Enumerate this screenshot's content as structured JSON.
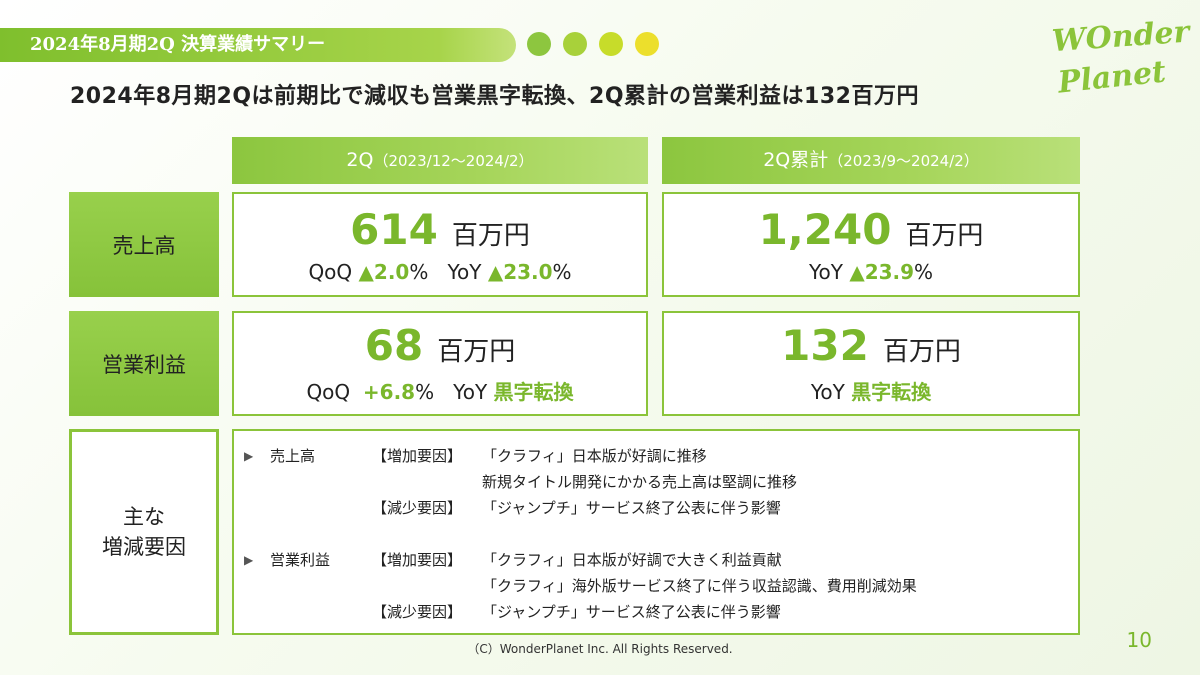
{
  "header": {
    "tab_title": "2024年8月期2Q 決算業績サマリー",
    "dot_colors": [
      "#8dc63f",
      "#a8d13a",
      "#c7dc2a",
      "#ecdf2c"
    ],
    "logo_top": "WOnder",
    "logo_bottom": "Planet"
  },
  "headline": "2024年8月期2Qは前期比で減収も営業黒字転換、2Q累計の営業利益は132百万円",
  "columns": [
    {
      "label": "2Q",
      "period": "（2023/12～2024/2）"
    },
    {
      "label": "2Q累計",
      "period": "（2023/9～2024/2）"
    }
  ],
  "rows": {
    "sales": {
      "label": "売上高",
      "q2": {
        "value": "614",
        "unit": "百万円",
        "qoq_label": "QoQ",
        "qoq": "▲2.0",
        "yoy_label": "YoY",
        "yoy": "▲23.0",
        "pct": "%"
      },
      "cum": {
        "value": "1,240",
        "unit": "百万円",
        "yoy_label": "YoY",
        "yoy": "▲23.9",
        "pct": "%"
      }
    },
    "op_profit": {
      "label": "営業利益",
      "q2": {
        "value": "68",
        "unit": "百万円",
        "qoq_label": "QoQ",
        "qoq": "+6.8",
        "pct": "%",
        "yoy_label": "YoY",
        "yoy": "黒字転換"
      },
      "cum": {
        "value": "132",
        "unit": "百万円",
        "yoy_label": "YoY",
        "yoy": "黒字転換"
      }
    }
  },
  "factors": {
    "label_line1": "主な",
    "label_line2": "増減要因",
    "sales": {
      "category": "売上高",
      "lines": [
        {
          "tag": "【増加要因】",
          "text": "「クラフィ」日本版が好調に推移"
        },
        {
          "tag": "",
          "text": "新規タイトル開発にかかる売上高は堅調に推移"
        },
        {
          "tag": "【減少要因】",
          "text": "「ジャンプチ」サービス終了公表に伴う影響"
        }
      ]
    },
    "op_profit": {
      "category": "営業利益",
      "lines": [
        {
          "tag": "【増加要因】",
          "text": "「クラフィ」日本版が好調で大きく利益貢献"
        },
        {
          "tag": "",
          "text": "「クラフィ」海外版サービス終了に伴う収益認識、費用削減効果"
        },
        {
          "tag": "【減少要因】",
          "text": "「ジャンプチ」サービス終了公表に伴う影響"
        }
      ]
    }
  },
  "footer": "（C）WonderPlanet Inc.  All Rights Reserved.",
  "page_number": "10"
}
